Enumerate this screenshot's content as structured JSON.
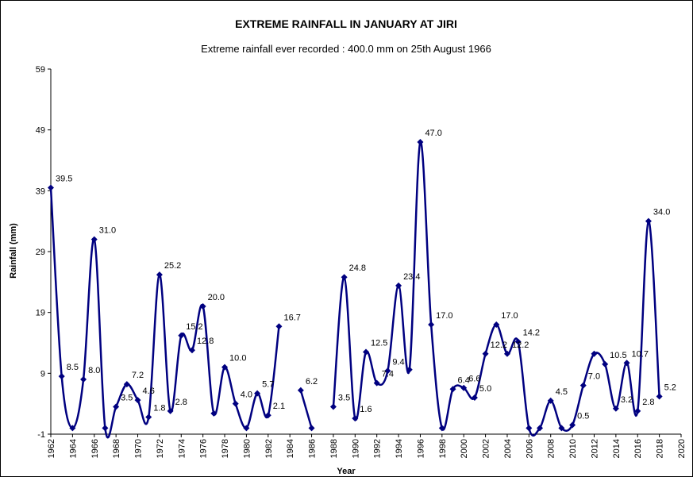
{
  "chart_data": {
    "type": "line",
    "title": "EXTREME RAINFALL IN JANUARY AT JIRI",
    "subtitle": "Extreme rainfall ever recorded : 400.0 mm on 25th August 1966",
    "xlabel": "Year",
    "ylabel": "Rainfall (mm)",
    "xlim": [
      1962,
      2020
    ],
    "ylim": [
      -1,
      59
    ],
    "x_ticks": [
      "1962",
      "1964",
      "1966",
      "1968",
      "1970",
      "1972",
      "1974",
      "1976",
      "1978",
      "1980",
      "1982",
      "1984",
      "1986",
      "1988",
      "1990",
      "1992",
      "1994",
      "1996",
      "1998",
      "2000",
      "2002",
      "2004",
      "2006",
      "2008",
      "2010",
      "2012",
      "2014",
      "2016",
      "2018",
      "2020"
    ],
    "y_ticks": [
      "-1",
      "9",
      "19",
      "29",
      "39",
      "49",
      "59"
    ],
    "grid": false,
    "legend": "none",
    "line_color": "#000080",
    "smooth": true,
    "series": [
      {
        "points": [
          {
            "x": 1962,
            "y": 39.5,
            "label": "39.5"
          },
          {
            "x": 1963,
            "y": 8.5,
            "label": "8.5"
          },
          {
            "x": 1964,
            "y": 0.0,
            "label": ""
          },
          {
            "x": 1965,
            "y": 8.0,
            "label": "8.0"
          },
          {
            "x": 1966,
            "y": 31.0,
            "label": "31.0"
          },
          {
            "x": 1967,
            "y": 0.0,
            "label": ""
          },
          {
            "x": 1968,
            "y": 3.5,
            "label": "3.5"
          },
          {
            "x": 1969,
            "y": 7.2,
            "label": "7.2"
          },
          {
            "x": 1970,
            "y": 4.6,
            "label": "4.6"
          },
          {
            "x": 1971,
            "y": 1.8,
            "label": "1.8"
          },
          {
            "x": 1972,
            "y": 25.2,
            "label": "25.2"
          },
          {
            "x": 1973,
            "y": 2.8,
            "label": "2.8"
          },
          {
            "x": 1974,
            "y": 15.2,
            "label": "15.2"
          },
          {
            "x": 1975,
            "y": 12.8,
            "label": "12.8"
          },
          {
            "x": 1976,
            "y": 20.0,
            "label": "20.0"
          },
          {
            "x": 1977,
            "y": 2.4,
            "label": ""
          },
          {
            "x": 1978,
            "y": 10.0,
            "label": "10.0"
          },
          {
            "x": 1979,
            "y": 4.0,
            "label": "4.0"
          },
          {
            "x": 1980,
            "y": 0.0,
            "label": ""
          },
          {
            "x": 1981,
            "y": 5.7,
            "label": "5.7"
          },
          {
            "x": 1982,
            "y": 2.1,
            "label": "2.1"
          },
          {
            "x": 1983,
            "y": 16.7,
            "label": "16.7"
          },
          {
            "x": 1984,
            "y": null,
            "label": ""
          },
          {
            "x": 1985,
            "y": 6.2,
            "label": "6.2"
          },
          {
            "x": 1986,
            "y": 0.0,
            "label": ""
          },
          {
            "x": 1987,
            "y": null,
            "label": ""
          },
          {
            "x": 1988,
            "y": 3.5,
            "label": "3.5"
          },
          {
            "x": 1989,
            "y": 24.8,
            "label": "24.8"
          },
          {
            "x": 1990,
            "y": 1.6,
            "label": "1.6"
          },
          {
            "x": 1991,
            "y": 12.5,
            "label": "12.5"
          },
          {
            "x": 1992,
            "y": 7.4,
            "label": "7.4"
          },
          {
            "x": 1993,
            "y": 9.4,
            "label": "9.4"
          },
          {
            "x": 1994,
            "y": 23.4,
            "label": "23.4"
          },
          {
            "x": 1995,
            "y": 9.6,
            "label": ""
          },
          {
            "x": 1996,
            "y": 47.0,
            "label": "47.0"
          },
          {
            "x": 1997,
            "y": 17.0,
            "label": "17.0"
          },
          {
            "x": 1998,
            "y": 0.0,
            "label": ""
          },
          {
            "x": 1999,
            "y": 6.4,
            "label": "6.4"
          },
          {
            "x": 2000,
            "y": 6.6,
            "label": "6.6"
          },
          {
            "x": 2001,
            "y": 5.0,
            "label": "5.0"
          },
          {
            "x": 2002,
            "y": 12.2,
            "label": "12.2"
          },
          {
            "x": 2003,
            "y": 17.0,
            "label": "17.0"
          },
          {
            "x": 2004,
            "y": 12.2,
            "label": "12.2"
          },
          {
            "x": 2005,
            "y": 14.2,
            "label": "14.2"
          },
          {
            "x": 2006,
            "y": 0.0,
            "label": ""
          },
          {
            "x": 2007,
            "y": 0.0,
            "label": ""
          },
          {
            "x": 2008,
            "y": 4.5,
            "label": "4.5"
          },
          {
            "x": 2009,
            "y": 0.0,
            "label": ""
          },
          {
            "x": 2010,
            "y": 0.5,
            "label": "0.5"
          },
          {
            "x": 2011,
            "y": 7.0,
            "label": "7.0"
          },
          {
            "x": 2012,
            "y": 12.2,
            "label": ""
          },
          {
            "x": 2013,
            "y": 10.5,
            "label": "10.5"
          },
          {
            "x": 2014,
            "y": 3.2,
            "label": "3.2"
          },
          {
            "x": 2015,
            "y": 10.7,
            "label": "10.7"
          },
          {
            "x": 2016,
            "y": 2.8,
            "label": "2.8"
          },
          {
            "x": 2017,
            "y": 34.0,
            "label": "34.0"
          },
          {
            "x": 2018,
            "y": 5.2,
            "label": "5.2"
          }
        ]
      }
    ]
  }
}
